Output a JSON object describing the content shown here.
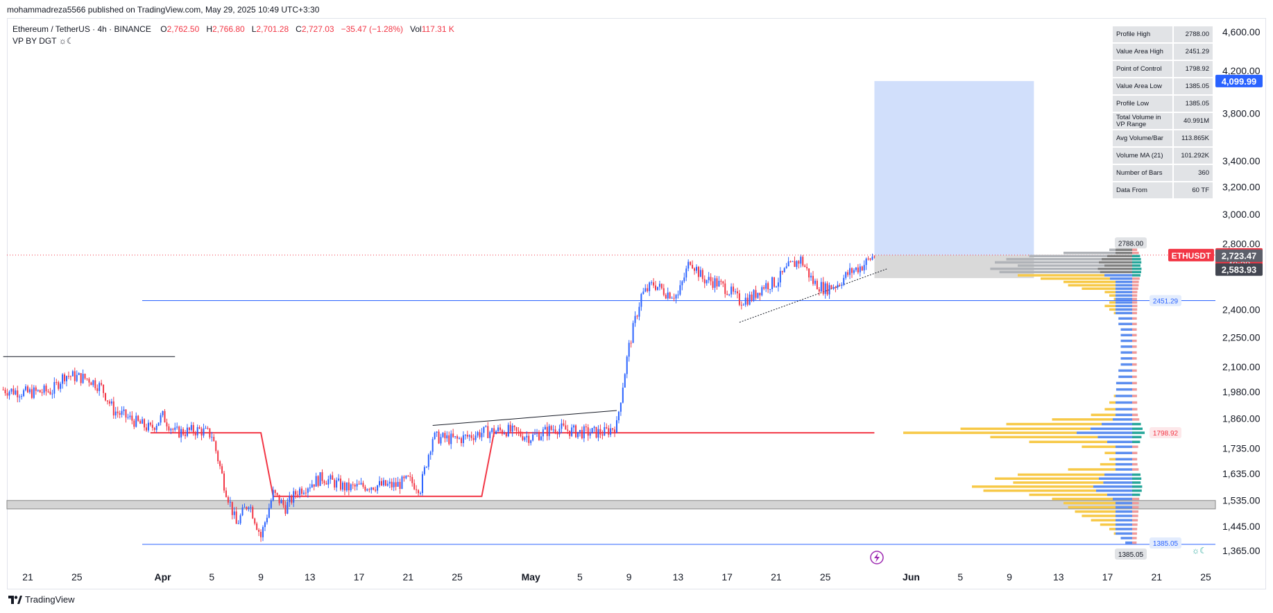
{
  "header": {
    "published": "mohammadreza5566 published on TradingView.com, May 29, 2025 10:49 UTC+3:30"
  },
  "legend": {
    "symbol": "Ethereum / TetherUS · 4h · BINANCE",
    "o_key": "O",
    "o_val": "2,762.50",
    "h_key": "H",
    "h_val": "2,766.80",
    "l_key": "L",
    "l_val": "2,701.28",
    "c_key": "C",
    "c_val": "2,727.03",
    "change": "−35.47 (−1.28%)",
    "vol_key": "Vol",
    "vol_val": "117.31 K",
    "indicator": "VP BY DGT ☼☾"
  },
  "footer": {
    "brand": "TradingView"
  },
  "stats_table": [
    {
      "label": "Profile High",
      "value": "2788.00"
    },
    {
      "label": "Value Area High",
      "value": "2451.29"
    },
    {
      "label": "Point of Control",
      "value": "1798.92"
    },
    {
      "label": "Value Area Low",
      "value": "1385.05"
    },
    {
      "label": "Profile Low",
      "value": "1385.05"
    },
    {
      "label": "Total Volume in VP Range",
      "value": "40.991M"
    },
    {
      "label": "Avg Volume/Bar",
      "value": "113.865K"
    },
    {
      "label": "Volume MA (21)",
      "value": "101.292K"
    },
    {
      "label": "Number of Bars",
      "value": "360"
    },
    {
      "label": "Data From",
      "value": "60 TF"
    }
  ],
  "colors": {
    "up": "#2962ff",
    "down": "#f23645",
    "poc_line": "#f23645",
    "va_line": "#2962ff",
    "target_box": "#d1dffb",
    "gray_box": "#d4d4d4",
    "vp_yellow": "#f7c948",
    "vp_blue": "#5b8def",
    "vp_gray": "#b0b3b8",
    "vp_teal": "#26a69a"
  },
  "chart_data": {
    "type": "candlestick",
    "title": "Ethereum / TetherUS · 4h · BINANCE",
    "symbol": "ETHUSDT",
    "y_axis": {
      "ticks": [
        1365,
        1445,
        1535,
        1635,
        1735,
        1860,
        1980,
        2100,
        2250,
        2400,
        2800,
        3000,
        3200,
        3400,
        3800,
        4200,
        4600
      ],
      "tick_labels": [
        "1,365.00",
        "1,445.00",
        "1,535.00",
        "1,635.00",
        "1,735.00",
        "1,860.00",
        "1,980.00",
        "2,100.00",
        "2,250.00",
        "2,400.00",
        "2,800.00",
        "3,000.00",
        "3,200.00",
        "3,400.00",
        "3,800.00",
        "4,200.00",
        "4,600.00"
      ],
      "scale": "log",
      "range": [
        1340,
        4700
      ]
    },
    "x_axis": {
      "start": "2025-03-19",
      "end": "2025-06-26",
      "tick_dates": [
        "2025-03-21",
        "2025-03-25",
        "2025-04-01",
        "2025-04-05",
        "2025-04-09",
        "2025-04-13",
        "2025-04-17",
        "2025-04-21",
        "2025-04-25",
        "2025-05-01",
        "2025-05-05",
        "2025-05-09",
        "2025-05-13",
        "2025-05-17",
        "2025-05-21",
        "2025-05-25",
        "2025-06-01",
        "2025-06-05",
        "2025-06-09",
        "2025-06-13",
        "2025-06-17",
        "2025-06-21",
        "2025-06-25"
      ],
      "tick_labels": [
        "21",
        "25",
        "Apr",
        "5",
        "9",
        "13",
        "17",
        "21",
        "25",
        "May",
        "5",
        "9",
        "13",
        "17",
        "21",
        "25",
        "Jun",
        "5",
        "9",
        "13",
        "17",
        "21",
        "25"
      ]
    },
    "price_path": [
      [
        "2025-03-19",
        1990
      ],
      [
        "2025-03-21",
        1975
      ],
      [
        "2025-03-23",
        1985
      ],
      [
        "2025-03-24",
        2060
      ],
      [
        "2025-03-26",
        2040
      ],
      [
        "2025-03-27",
        2000
      ],
      [
        "2025-03-28",
        1895
      ],
      [
        "2025-03-30",
        1840
      ],
      [
        "2025-03-31",
        1815
      ],
      [
        "2025-04-01",
        1870
      ],
      [
        "2025-04-02",
        1800
      ],
      [
        "2025-04-04",
        1810
      ],
      [
        "2025-04-05",
        1790
      ],
      [
        "2025-04-06",
        1595
      ],
      [
        "2025-04-07",
        1450
      ],
      [
        "2025-04-08",
        1530
      ],
      [
        "2025-04-09",
        1410
      ],
      [
        "2025-04-10",
        1560
      ],
      [
        "2025-04-11",
        1510
      ],
      [
        "2025-04-12",
        1570
      ],
      [
        "2025-04-14",
        1620
      ],
      [
        "2025-04-16",
        1580
      ],
      [
        "2025-04-18",
        1590
      ],
      [
        "2025-04-20",
        1590
      ],
      [
        "2025-04-21",
        1610
      ],
      [
        "2025-04-22",
        1580
      ],
      [
        "2025-04-23",
        1780
      ],
      [
        "2025-04-25",
        1770
      ],
      [
        "2025-04-27",
        1800
      ],
      [
        "2025-04-29",
        1810
      ],
      [
        "2025-05-01",
        1780
      ],
      [
        "2025-05-03",
        1820
      ],
      [
        "2025-05-05",
        1800
      ],
      [
        "2025-05-07",
        1800
      ],
      [
        "2025-05-08",
        1830
      ],
      [
        "2025-05-09",
        2200
      ],
      [
        "2025-05-10",
        2480
      ],
      [
        "2025-05-11",
        2550
      ],
      [
        "2025-05-12",
        2500
      ],
      [
        "2025-05-13",
        2480
      ],
      [
        "2025-05-14",
        2700
      ],
      [
        "2025-05-15",
        2580
      ],
      [
        "2025-05-16",
        2560
      ],
      [
        "2025-05-17",
        2520
      ],
      [
        "2025-05-18",
        2450
      ],
      [
        "2025-05-19",
        2470
      ],
      [
        "2025-05-20",
        2540
      ],
      [
        "2025-05-21",
        2560
      ],
      [
        "2025-05-22",
        2650
      ],
      [
        "2025-05-23",
        2700
      ],
      [
        "2025-05-24",
        2560
      ],
      [
        "2025-05-25",
        2520
      ],
      [
        "2025-05-26",
        2550
      ],
      [
        "2025-05-27",
        2620
      ],
      [
        "2025-05-28",
        2660
      ],
      [
        "2025-05-29",
        2727
      ]
    ],
    "last_price": 2727.03,
    "poc_steps": [
      [
        "2025-03-31",
        1798.92
      ],
      [
        "2025-04-09",
        1798.92
      ],
      [
        "2025-04-10",
        1550
      ],
      [
        "2025-04-27",
        1550
      ],
      [
        "2025-04-28",
        1798.92
      ],
      [
        "2025-05-29",
        1798.92
      ]
    ],
    "value_area_high": 2451.29,
    "point_of_control": 1798.92,
    "value_area_low": 1385.05,
    "profile_high": 2788.0,
    "profile_low": 1385.05,
    "target_box": {
      "from": "2025-05-29",
      "to": "2025-06-11",
      "top": 4099.99,
      "bottom": 2727.03
    },
    "stop_box": {
      "from": "2025-05-29",
      "to": "2025-06-11",
      "top": 2727.03,
      "bottom": 2583.93
    },
    "support_zone": {
      "top": 1535,
      "bottom": 1505
    },
    "resistance_line": {
      "from": "2025-03-19",
      "to": "2025-04-02",
      "price": 2150
    },
    "trendlines": [
      {
        "from": [
          "2025-04-23",
          1830
        ],
        "to": [
          "2025-05-08",
          1895
        ]
      },
      {
        "from": [
          "2025-05-18",
          2330
        ],
        "to": [
          "2025-05-30",
          2640
        ]
      }
    ],
    "price_labels": {
      "target": "4,099.99",
      "symbol_tag": "ETHUSDT",
      "last": "2,727.03",
      "countdown": "40:28",
      "level_a": "2,723.47",
      "level_b": "2,583.93",
      "profile_high_tag": "2788.00",
      "vah_tag": "2451.29",
      "poc_tag": "1798.92",
      "val_tag": "1385.05",
      "profile_low_tag": "1385.05"
    },
    "volume_profile_rows": [
      [
        2780,
        0.05
      ],
      [
        2760,
        0.1
      ],
      [
        2740,
        0.3
      ],
      [
        2720,
        0.45
      ],
      [
        2700,
        0.55
      ],
      [
        2680,
        0.6
      ],
      [
        2660,
        0.5
      ],
      [
        2640,
        0.62
      ],
      [
        2620,
        0.58
      ],
      [
        2600,
        0.5
      ],
      [
        2580,
        0.4
      ],
      [
        2560,
        0.3
      ],
      [
        2540,
        0.28
      ],
      [
        2520,
        0.22
      ],
      [
        2500,
        0.12
      ],
      [
        2480,
        0.1
      ],
      [
        2460,
        0.08
      ],
      [
        2440,
        0.1
      ],
      [
        2420,
        0.12
      ],
      [
        2400,
        0.1
      ],
      [
        2380,
        0.08
      ],
      [
        2350,
        0.06
      ],
      [
        2320,
        0.06
      ],
      [
        2290,
        0.05
      ],
      [
        2260,
        0.05
      ],
      [
        2230,
        0.05
      ],
      [
        2200,
        0.05
      ],
      [
        2170,
        0.05
      ],
      [
        2140,
        0.05
      ],
      [
        2110,
        0.05
      ],
      [
        2080,
        0.06
      ],
      [
        2050,
        0.06
      ],
      [
        2020,
        0.07
      ],
      [
        1990,
        0.07
      ],
      [
        1960,
        0.08
      ],
      [
        1930,
        0.1
      ],
      [
        1900,
        0.12
      ],
      [
        1875,
        0.18
      ],
      [
        1855,
        0.35
      ],
      [
        1835,
        0.55
      ],
      [
        1815,
        0.75
      ],
      [
        1798,
        1.0
      ],
      [
        1780,
        0.62
      ],
      [
        1760,
        0.45
      ],
      [
        1740,
        0.22
      ],
      [
        1715,
        0.12
      ],
      [
        1690,
        0.1
      ],
      [
        1670,
        0.14
      ],
      [
        1650,
        0.28
      ],
      [
        1630,
        0.5
      ],
      [
        1615,
        0.6
      ],
      [
        1600,
        0.52
      ],
      [
        1585,
        0.7
      ],
      [
        1570,
        0.65
      ],
      [
        1555,
        0.45
      ],
      [
        1540,
        0.35
      ],
      [
        1525,
        0.3
      ],
      [
        1510,
        0.28
      ],
      [
        1495,
        0.25
      ],
      [
        1480,
        0.22
      ],
      [
        1465,
        0.18
      ],
      [
        1450,
        0.14
      ],
      [
        1435,
        0.1
      ],
      [
        1420,
        0.08
      ],
      [
        1405,
        0.05
      ],
      [
        1390,
        0.03
      ]
    ]
  }
}
